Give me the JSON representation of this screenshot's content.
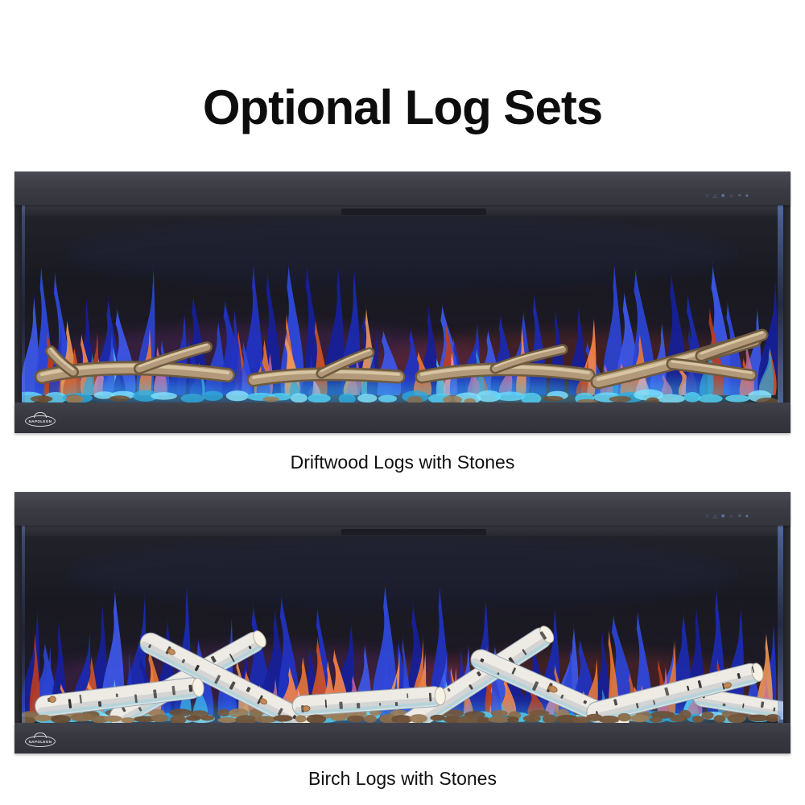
{
  "page": {
    "title": "Optional Log Sets",
    "background": "#ffffff"
  },
  "brand": {
    "logo_text": "NAPOLEON"
  },
  "controls": {
    "glyphs": [
      "○",
      "△",
      "■",
      "☼",
      "≡",
      "●"
    ]
  },
  "fireplaces": [
    {
      "caption": "Driftwood Logs with Stones",
      "log_type": "driftwood"
    },
    {
      "caption": "Birch Logs with Stones",
      "log_type": "birch"
    }
  ],
  "colors": {
    "frame_top": "#4a4a52",
    "frame_bottom": "#34343c",
    "glass": "#17171d",
    "flame_blues": [
      "#16209a",
      "#2133c6",
      "#2f4ae0",
      "#2a44d4",
      "#1a2ab2",
      "#3c58ea"
    ],
    "flame_oranges": [
      "#d85420",
      "#ee7a36",
      "#f29a58",
      "#c23c18",
      "#ff8844"
    ],
    "flame_pinks": [
      "#e68aa8",
      "#d4699c",
      "#f0a4bc",
      "#c87292"
    ],
    "flame_cyans": [
      "#3fb6e8",
      "#5fd2f6",
      "#2f9fd4"
    ],
    "stone_glow": [
      "#55d4f8",
      "#8ce8ff",
      "#2fa8dc",
      "#6adcff"
    ],
    "pebbles": [
      "#8a6a48",
      "#75563a",
      "#9c7c56",
      "#6b4d33"
    ],
    "driftwood_dark": "#6e5a3e",
    "driftwood_mid": "#b1997a",
    "driftwood_light": "#ddcaa6",
    "birch_body": "#edebe4",
    "birch_shade": "#9aa6b2",
    "birch_mark": "#1e1e1e",
    "birch_end": "#f6f2e6",
    "birch_knot": "#c08048",
    "controls_tint": "#6478b2"
  }
}
